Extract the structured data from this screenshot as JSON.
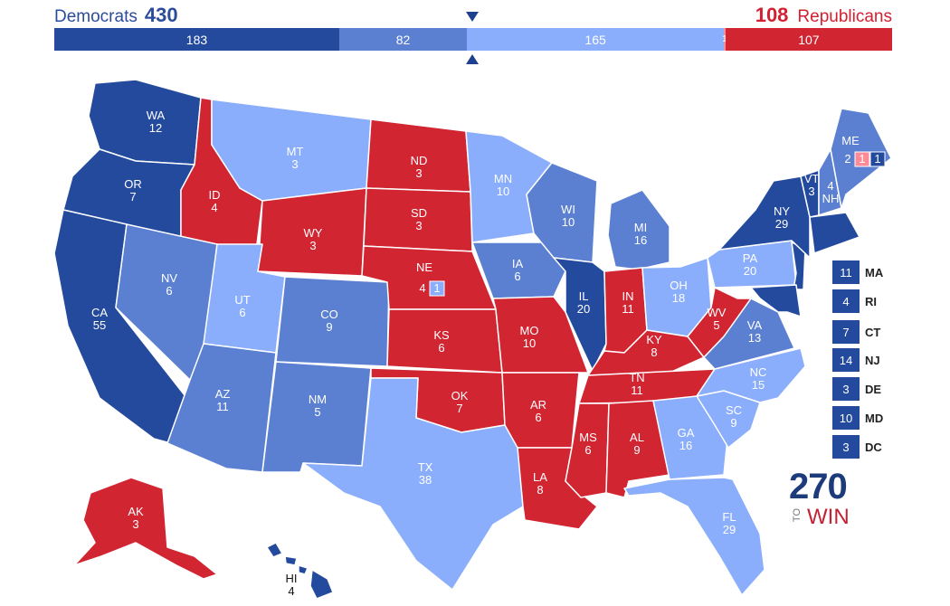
{
  "header": {
    "dem_name": "Democrats",
    "dem_total": "430",
    "rep_name": "Republicans",
    "rep_total": "108",
    "bar": [
      {
        "label": "183",
        "votes": 183,
        "cls": "sdem"
      },
      {
        "label": "82",
        "votes": 82,
        "cls": "ldem"
      },
      {
        "label": "165",
        "votes": 165,
        "cls": "tdem"
      },
      {
        "label": "1",
        "votes": 1,
        "cls": "trep"
      },
      {
        "label": "107",
        "votes": 107,
        "cls": "srep"
      }
    ]
  },
  "colors": {
    "safe_dem": "#244a9e",
    "likely_dem": "#5b7fd1",
    "tilt_dem": "#8aaefc",
    "tilt_rep": "#ff8b98",
    "safe_rep": "#d22532"
  },
  "states": [
    {
      "id": "WA",
      "ev": "12"
    },
    {
      "id": "OR",
      "ev": "7"
    },
    {
      "id": "CA",
      "ev": "55"
    },
    {
      "id": "ID",
      "ev": "4"
    },
    {
      "id": "NV",
      "ev": "6"
    },
    {
      "id": "MT",
      "ev": "3"
    },
    {
      "id": "WY",
      "ev": "3"
    },
    {
      "id": "UT",
      "ev": "6"
    },
    {
      "id": "AZ",
      "ev": "11"
    },
    {
      "id": "CO",
      "ev": "9"
    },
    {
      "id": "NM",
      "ev": "5"
    },
    {
      "id": "ND",
      "ev": "3"
    },
    {
      "id": "SD",
      "ev": "3"
    },
    {
      "id": "NE",
      "ev": "4"
    },
    {
      "id": "KS",
      "ev": "6"
    },
    {
      "id": "OK",
      "ev": "7"
    },
    {
      "id": "TX",
      "ev": "38"
    },
    {
      "id": "MN",
      "ev": "10"
    },
    {
      "id": "IA",
      "ev": "6"
    },
    {
      "id": "MO",
      "ev": "10"
    },
    {
      "id": "AR",
      "ev": "6"
    },
    {
      "id": "LA",
      "ev": "8"
    },
    {
      "id": "WI",
      "ev": "10"
    },
    {
      "id": "IL",
      "ev": "20"
    },
    {
      "id": "MI",
      "ev": "16"
    },
    {
      "id": "IN",
      "ev": "11"
    },
    {
      "id": "OH",
      "ev": "18"
    },
    {
      "id": "KY",
      "ev": "8"
    },
    {
      "id": "TN",
      "ev": "11"
    },
    {
      "id": "MS",
      "ev": "6"
    },
    {
      "id": "AL",
      "ev": "9"
    },
    {
      "id": "GA",
      "ev": "16"
    },
    {
      "id": "FL",
      "ev": "29"
    },
    {
      "id": "SC",
      "ev": "9"
    },
    {
      "id": "NC",
      "ev": "15"
    },
    {
      "id": "VA",
      "ev": "13"
    },
    {
      "id": "WV",
      "ev": "5"
    },
    {
      "id": "PA",
      "ev": "20"
    },
    {
      "id": "NY",
      "ev": "29"
    },
    {
      "id": "VT",
      "ev": "3"
    },
    {
      "id": "NH",
      "ev": "4"
    },
    {
      "id": "ME",
      "ev": "2"
    },
    {
      "id": "AK",
      "ev": "3"
    },
    {
      "id": "HI",
      "ev": "4"
    }
  ],
  "districts": {
    "ne_cd2": "1",
    "me_cd1": "1",
    "me_cd2": "1"
  },
  "small_states": [
    {
      "ev": "11",
      "abbr": "MA"
    },
    {
      "ev": "4",
      "abbr": "RI"
    },
    {
      "ev": "7",
      "abbr": "CT"
    },
    {
      "ev": "14",
      "abbr": "NJ"
    },
    {
      "ev": "3",
      "abbr": "DE"
    },
    {
      "ev": "10",
      "abbr": "MD"
    },
    {
      "ev": "3",
      "abbr": "DC"
    }
  ],
  "logo": {
    "number": "270",
    "to": "TO",
    "win": "WIN"
  }
}
